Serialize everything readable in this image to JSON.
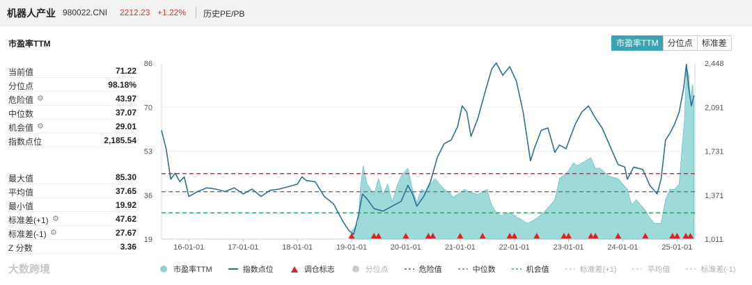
{
  "header": {
    "name": "机器人产业",
    "code": "980022.CNI",
    "price": "2212.23",
    "change": "+1.22%",
    "history_label": "历史PE/PB"
  },
  "panel": {
    "title": "市盈率TTM",
    "tabs": [
      {
        "label": "市盈率TTM",
        "active": true
      },
      {
        "label": "分位点",
        "active": false
      },
      {
        "label": "标准差",
        "active": false
      }
    ]
  },
  "stats_top": [
    {
      "label": "当前值",
      "value": "71.22",
      "gear": false
    },
    {
      "label": "分位点",
      "value": "98.18%",
      "gear": false
    },
    {
      "label": "危险值",
      "value": "43.97",
      "gear": true
    },
    {
      "label": "中位数",
      "value": "37.07",
      "gear": false
    },
    {
      "label": "机会值",
      "value": "29.01",
      "gear": true
    },
    {
      "label": "指数点位",
      "value": "2,185.54",
      "gear": false
    }
  ],
  "stats_bottom": [
    {
      "label": "最大值",
      "value": "85.30",
      "gear": false
    },
    {
      "label": "平均值",
      "value": "37.65",
      "gear": false
    },
    {
      "label": "最小值",
      "value": "19.92",
      "gear": false
    },
    {
      "label": "标准差(+1)",
      "value": "47.62",
      "gear": true
    },
    {
      "label": "标准差(-1)",
      "value": "27.67",
      "gear": true
    },
    {
      "label": "Z 分数",
      "value": "3.36",
      "gear": false
    }
  ],
  "watermark": "大数跨境",
  "chart_data": {
    "type": "area",
    "x_ticks": [
      "16-01-01",
      "17-01-01",
      "18-01-01",
      "19-01-01",
      "20-01-01",
      "21-01-01",
      "22-01-01",
      "23-01-01",
      "24-01-01",
      "25-01-01"
    ],
    "y_left_ticks": [
      "86",
      "70",
      "53",
      "36",
      "19"
    ],
    "y_right_ticks": [
      "2,448",
      "2,091",
      "1,731",
      "1,371",
      "1,011"
    ],
    "y_left_range": [
      19,
      86
    ],
    "y_right_range": [
      1011,
      2448
    ],
    "x_range": [
      "2015-07-01",
      "2025-05-01"
    ],
    "hlines": {
      "danger": 43.97,
      "median": 37.07,
      "opportunity": 29.01
    },
    "colors": {
      "pe_fill": "#8dd3d3",
      "index_line": "#2b6f97",
      "danger": "#d03030",
      "median": "#777777",
      "opportunity": "#2aa06a",
      "marker": "#e02020"
    },
    "series": [
      {
        "name": "市盈率TTM",
        "points": [
          [
            "2019-01-01",
            22
          ],
          [
            "2019-02-15",
            25
          ],
          [
            "2019-03-01",
            38
          ],
          [
            "2019-03-20",
            47
          ],
          [
            "2019-04-15",
            40
          ],
          [
            "2019-06-01",
            36
          ],
          [
            "2019-07-01",
            42
          ],
          [
            "2019-08-01",
            36
          ],
          [
            "2019-09-01",
            40
          ],
          [
            "2019-10-01",
            33
          ],
          [
            "2019-11-01",
            39
          ],
          [
            "2019-12-01",
            43
          ],
          [
            "2020-01-15",
            46
          ],
          [
            "2020-02-15",
            38
          ],
          [
            "2020-03-15",
            33
          ],
          [
            "2020-04-15",
            38
          ],
          [
            "2020-05-15",
            37
          ],
          [
            "2020-06-15",
            40
          ],
          [
            "2020-07-15",
            42
          ],
          [
            "2020-08-15",
            40
          ],
          [
            "2020-09-15",
            38
          ],
          [
            "2020-10-15",
            37
          ],
          [
            "2020-11-15",
            35
          ],
          [
            "2020-12-15",
            36
          ],
          [
            "2021-02-01",
            38
          ],
          [
            "2021-03-01",
            37
          ],
          [
            "2021-05-01",
            36
          ],
          [
            "2021-07-01",
            38
          ],
          [
            "2021-08-01",
            32
          ],
          [
            "2021-09-01",
            29
          ],
          [
            "2021-10-01",
            28
          ],
          [
            "2021-12-01",
            29
          ],
          [
            "2022-02-01",
            27
          ],
          [
            "2022-04-01",
            25
          ],
          [
            "2022-06-01",
            27
          ],
          [
            "2022-08-01",
            30
          ],
          [
            "2022-10-01",
            34
          ],
          [
            "2022-11-01",
            42
          ],
          [
            "2023-01-01",
            45
          ],
          [
            "2023-02-01",
            48
          ],
          [
            "2023-03-01",
            47
          ],
          [
            "2023-05-01",
            49
          ],
          [
            "2023-06-01",
            50
          ],
          [
            "2023-07-01",
            46
          ],
          [
            "2023-08-01",
            46
          ],
          [
            "2023-10-01",
            43
          ],
          [
            "2023-12-01",
            42
          ],
          [
            "2024-02-01",
            38
          ],
          [
            "2024-03-01",
            32
          ],
          [
            "2024-04-01",
            34
          ],
          [
            "2024-06-01",
            30
          ],
          [
            "2024-07-01",
            27
          ],
          [
            "2024-08-01",
            25
          ],
          [
            "2024-09-15",
            25
          ],
          [
            "2024-10-15",
            34
          ],
          [
            "2024-11-15",
            38
          ],
          [
            "2024-12-15",
            38
          ],
          [
            "2025-01-15",
            40
          ],
          [
            "2025-02-01",
            52
          ],
          [
            "2025-02-20",
            65
          ],
          [
            "2025-03-05",
            84
          ],
          [
            "2025-03-20",
            82
          ],
          [
            "2025-04-01",
            72
          ],
          [
            "2025-04-15",
            78
          ],
          [
            "2025-04-25",
            71
          ]
        ]
      },
      {
        "name": "指数点位",
        "points": [
          [
            "2015-07-01",
            1900
          ],
          [
            "2015-08-01",
            1750
          ],
          [
            "2015-09-01",
            1500
          ],
          [
            "2015-10-01",
            1550
          ],
          [
            "2015-11-01",
            1480
          ],
          [
            "2015-12-01",
            1520
          ],
          [
            "2016-01-01",
            1360
          ],
          [
            "2016-03-01",
            1400
          ],
          [
            "2016-05-01",
            1430
          ],
          [
            "2016-07-01",
            1420
          ],
          [
            "2016-09-01",
            1400
          ],
          [
            "2016-11-01",
            1430
          ],
          [
            "2017-01-01",
            1380
          ],
          [
            "2017-03-01",
            1420
          ],
          [
            "2017-05-01",
            1360
          ],
          [
            "2017-07-01",
            1410
          ],
          [
            "2017-09-01",
            1420
          ],
          [
            "2017-11-01",
            1440
          ],
          [
            "2018-01-01",
            1460
          ],
          [
            "2018-02-01",
            1520
          ],
          [
            "2018-03-01",
            1490
          ],
          [
            "2018-05-01",
            1480
          ],
          [
            "2018-07-01",
            1360
          ],
          [
            "2018-09-01",
            1300
          ],
          [
            "2018-11-01",
            1160
          ],
          [
            "2018-12-15",
            1080
          ],
          [
            "2019-01-15",
            1050
          ],
          [
            "2019-02-15",
            1200
          ],
          [
            "2019-03-15",
            1380
          ],
          [
            "2019-04-15",
            1340
          ],
          [
            "2019-06-01",
            1260
          ],
          [
            "2019-08-01",
            1240
          ],
          [
            "2019-10-01",
            1280
          ],
          [
            "2019-12-01",
            1320
          ],
          [
            "2020-01-15",
            1450
          ],
          [
            "2020-02-15",
            1380
          ],
          [
            "2020-03-15",
            1280
          ],
          [
            "2020-05-01",
            1360
          ],
          [
            "2020-06-15",
            1480
          ],
          [
            "2020-08-01",
            1680
          ],
          [
            "2020-09-15",
            1790
          ],
          [
            "2020-11-01",
            1820
          ],
          [
            "2020-12-15",
            1930
          ],
          [
            "2021-01-15",
            2100
          ],
          [
            "2021-02-15",
            2050
          ],
          [
            "2021-03-15",
            1850
          ],
          [
            "2021-05-01",
            2000
          ],
          [
            "2021-06-15",
            2200
          ],
          [
            "2021-08-01",
            2400
          ],
          [
            "2021-09-01",
            2450
          ],
          [
            "2021-10-15",
            2350
          ],
          [
            "2021-12-01",
            2420
          ],
          [
            "2022-01-15",
            2300
          ],
          [
            "2022-03-01",
            2050
          ],
          [
            "2022-04-20",
            1650
          ],
          [
            "2022-05-15",
            1750
          ],
          [
            "2022-07-01",
            1900
          ],
          [
            "2022-08-15",
            1920
          ],
          [
            "2022-10-01",
            1720
          ],
          [
            "2022-11-01",
            1780
          ],
          [
            "2022-12-15",
            1750
          ],
          [
            "2023-02-15",
            1950
          ],
          [
            "2023-04-01",
            2050
          ],
          [
            "2023-05-15",
            2100
          ],
          [
            "2023-07-01",
            2000
          ],
          [
            "2023-08-15",
            1920
          ],
          [
            "2023-10-15",
            1750
          ],
          [
            "2023-12-01",
            1620
          ],
          [
            "2024-01-15",
            1600
          ],
          [
            "2024-02-01",
            1500
          ],
          [
            "2024-03-15",
            1600
          ],
          [
            "2024-05-15",
            1580
          ],
          [
            "2024-07-01",
            1450
          ],
          [
            "2024-08-20",
            1380
          ],
          [
            "2024-09-15",
            1500
          ],
          [
            "2024-10-15",
            1820
          ],
          [
            "2024-11-15",
            1880
          ],
          [
            "2024-12-15",
            1950
          ],
          [
            "2025-01-15",
            2050
          ],
          [
            "2025-02-15",
            2250
          ],
          [
            "2025-03-05",
            2440
          ],
          [
            "2025-03-20",
            2250
          ],
          [
            "2025-04-07",
            2100
          ],
          [
            "2025-04-25",
            2185
          ]
        ]
      }
    ],
    "markers": [
      "2019-01-01",
      "2019-06-01",
      "2019-07-01",
      "2020-01-01",
      "2020-06-01",
      "2020-07-01",
      "2021-01-01",
      "2021-06-01",
      "2021-12-01",
      "2022-01-01",
      "2022-06-01",
      "2022-12-01",
      "2023-01-01",
      "2023-06-01",
      "2023-07-01",
      "2023-12-01",
      "2024-06-01",
      "2024-12-01",
      "2025-01-01",
      "2025-03-01",
      "2025-04-01"
    ],
    "legend": [
      {
        "label": "市盈率TTM",
        "kind": "dot",
        "color": "#8dd3d3",
        "muted": false
      },
      {
        "label": "指数点位",
        "kind": "line",
        "color": "#2b6f97",
        "muted": false
      },
      {
        "label": "调仓标志",
        "kind": "triangle",
        "color": "#e02020",
        "muted": false
      },
      {
        "label": "分位点",
        "kind": "dot",
        "color": "#cccccc",
        "muted": true
      },
      {
        "label": "危险值",
        "kind": "dash",
        "color": "#d03030",
        "muted": false
      },
      {
        "label": "中位数",
        "kind": "dash",
        "color": "#777777",
        "muted": false
      },
      {
        "label": "机会值",
        "kind": "dash",
        "color": "#2aa06a",
        "muted": false
      },
      {
        "label": "标准差(+1)",
        "kind": "dash",
        "color": "#cccccc",
        "muted": true
      },
      {
        "label": "平均值",
        "kind": "dash",
        "color": "#cccccc",
        "muted": true
      },
      {
        "label": "标准差(-1)",
        "kind": "dash",
        "color": "#cccccc",
        "muted": true
      }
    ]
  }
}
